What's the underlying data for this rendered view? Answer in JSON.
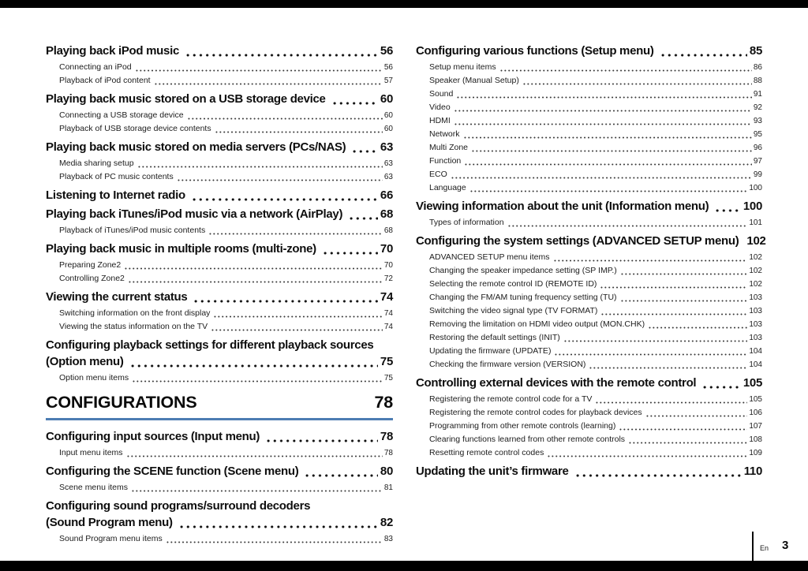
{
  "footer": {
    "language_label": "En",
    "page_number": "3"
  },
  "columns": {
    "left": [
      {
        "type": "entry",
        "title": "Playing back iPod music",
        "page": "56",
        "subs": [
          {
            "title": "Connecting an iPod",
            "page": "56"
          },
          {
            "title": "Playback of iPod content",
            "page": "57"
          }
        ]
      },
      {
        "type": "entry",
        "title": "Playing back music stored on a USB storage device",
        "page": "60",
        "subs": [
          {
            "title": "Connecting a USB storage device",
            "page": "60"
          },
          {
            "title": "Playback of USB storage device contents",
            "page": "60"
          }
        ]
      },
      {
        "type": "entry",
        "title": "Playing back music stored on media servers (PCs/NAS)",
        "page": "63",
        "subs": [
          {
            "title": "Media sharing setup",
            "page": "63"
          },
          {
            "title": "Playback of PC music contents",
            "page": "63"
          }
        ]
      },
      {
        "type": "entry",
        "title": "Listening to Internet radio",
        "page": "66",
        "subs": []
      },
      {
        "type": "entry",
        "title": "Playing back iTunes/iPod music via a network (AirPlay)",
        "page": "68",
        "subs": [
          {
            "title": "Playback of iTunes/iPod music contents",
            "page": "68"
          }
        ]
      },
      {
        "type": "entry",
        "title": "Playing back music in multiple rooms (multi-zone)",
        "page": "70",
        "subs": [
          {
            "title": "Preparing Zone2",
            "page": "70"
          },
          {
            "title": "Controlling Zone2",
            "page": "72"
          }
        ]
      },
      {
        "type": "entry",
        "title": "Viewing the current status",
        "page": "74",
        "subs": [
          {
            "title": "Switching information on the front display",
            "page": "74"
          },
          {
            "title": "Viewing the status information on the TV",
            "page": "74"
          }
        ]
      },
      {
        "type": "entry",
        "title": "Configuring playback settings for different playback sources",
        "title2": "(Option menu)",
        "page": "75",
        "subs": [
          {
            "title": "Option menu items",
            "page": "75"
          }
        ]
      },
      {
        "type": "chapter",
        "title": "CONFIGURATIONS",
        "page": "78"
      },
      {
        "type": "entry",
        "title": "Configuring input sources (Input menu)",
        "page": "78",
        "subs": [
          {
            "title": "Input menu items",
            "page": "78"
          }
        ]
      },
      {
        "type": "entry",
        "title": "Configuring the SCENE function (Scene menu)",
        "page": "80",
        "subs": [
          {
            "title": "Scene menu items",
            "page": "81"
          }
        ]
      },
      {
        "type": "entry",
        "title": "Configuring sound programs/surround decoders",
        "title2": "(Sound Program menu)",
        "page": "82",
        "subs": [
          {
            "title": "Sound Program menu items",
            "page": "83"
          }
        ]
      }
    ],
    "right": [
      {
        "type": "entry",
        "title": "Configuring various functions (Setup menu)",
        "page": "85",
        "subs": [
          {
            "title": "Setup menu items",
            "page": "86"
          },
          {
            "title": "Speaker (Manual Setup)",
            "page": "88"
          },
          {
            "title": "Sound",
            "page": "91"
          },
          {
            "title": "Video",
            "page": "92"
          },
          {
            "title": "HDMI",
            "page": "93"
          },
          {
            "title": "Network",
            "page": "95"
          },
          {
            "title": "Multi Zone",
            "page": "96"
          },
          {
            "title": "Function",
            "page": "97"
          },
          {
            "title": "ECO",
            "page": "99"
          },
          {
            "title": "Language",
            "page": "100"
          }
        ]
      },
      {
        "type": "entry",
        "title": "Viewing information about the unit (Information menu)",
        "page": "100",
        "subs": [
          {
            "title": "Types of information",
            "page": "101"
          }
        ]
      },
      {
        "type": "entry",
        "title": "Configuring the system settings (ADVANCED SETUP menu)",
        "page": "102",
        "subs": [
          {
            "title": "ADVANCED SETUP menu items",
            "page": "102"
          },
          {
            "title": "Changing the speaker impedance setting (SP IMP.)",
            "page": "102"
          },
          {
            "title": "Selecting the remote control ID (REMOTE ID)",
            "page": "102"
          },
          {
            "title": "Changing the FM/AM tuning frequency setting (TU)",
            "page": "103"
          },
          {
            "title": "Switching the video signal type (TV FORMAT)",
            "page": "103"
          },
          {
            "title": "Removing the limitation on HDMI video output (MON.CHK)",
            "page": "103"
          },
          {
            "title": "Restoring the default settings (INIT)",
            "page": "103"
          },
          {
            "title": "Updating the firmware (UPDATE)",
            "page": "104"
          },
          {
            "title": "Checking the firmware version (VERSION)",
            "page": "104"
          }
        ]
      },
      {
        "type": "entry",
        "title": "Controlling external devices with the remote control",
        "page": "105",
        "subs": [
          {
            "title": "Registering the remote control code for a TV",
            "page": "105"
          },
          {
            "title": "Registering the remote control codes for playback devices",
            "page": "106"
          },
          {
            "title": "Programming from other remote controls (learning)",
            "page": "107"
          },
          {
            "title": "Clearing functions learned from other remote controls",
            "page": "108"
          },
          {
            "title": "Resetting remote control codes",
            "page": "109"
          }
        ]
      },
      {
        "type": "entry",
        "title": "Updating the unit’s firmware",
        "page": "110",
        "subs": []
      }
    ]
  }
}
